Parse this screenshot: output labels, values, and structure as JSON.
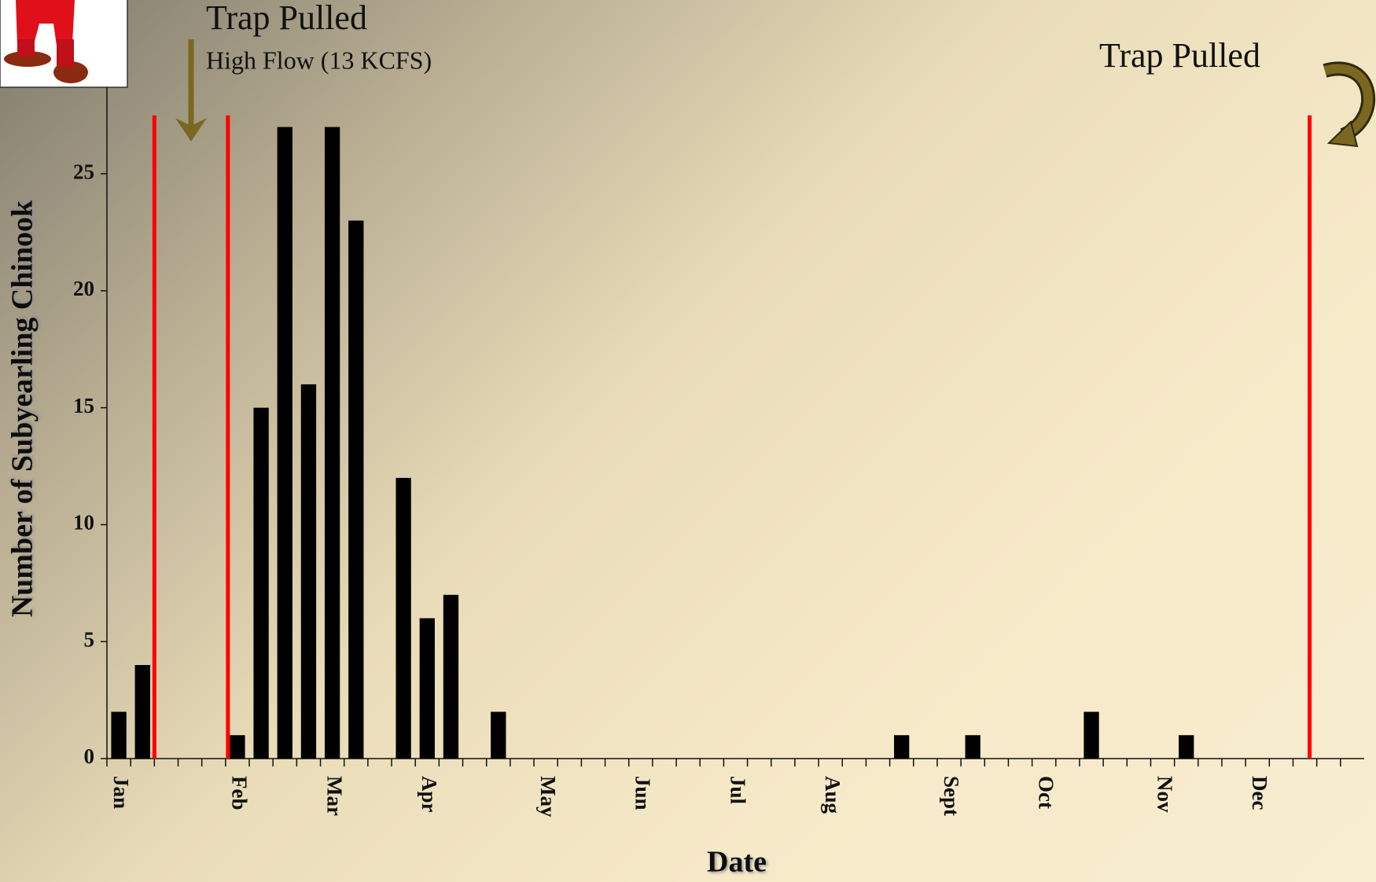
{
  "chart_data": {
    "type": "bar",
    "annotations": [
      "Trap Pulled",
      "High Flow (13 KCFS)",
      "Trap Pulled"
    ],
    "x_label": "Date",
    "y_label": "Number of Subyearling Chinook",
    "categories": [
      "Jan",
      null,
      null,
      null,
      null,
      "Feb",
      null,
      null,
      null,
      "Mar",
      null,
      null,
      null,
      "Apr",
      null,
      null,
      null,
      null,
      "May",
      null,
      null,
      null,
      "Jun",
      null,
      null,
      null,
      "Jul",
      null,
      null,
      null,
      "Aug",
      null,
      null,
      null,
      null,
      "Sept",
      null,
      null,
      null,
      "Oct",
      null,
      null,
      null,
      null,
      "Nov",
      null,
      null,
      null,
      "Dec",
      null,
      null,
      null,
      null
    ],
    "values": [
      2,
      4,
      0,
      0,
      0,
      1,
      15,
      27,
      16,
      27,
      23,
      0,
      12,
      6,
      7,
      0,
      2,
      0,
      0,
      0,
      0,
      0,
      0,
      0,
      0,
      0,
      0,
      0,
      0,
      0,
      0,
      0,
      0,
      1,
      0,
      0,
      1,
      0,
      0,
      0,
      0,
      2,
      0,
      0,
      0,
      1,
      0,
      0,
      0,
      0,
      0,
      0,
      0
    ],
    "color": "#000000",
    "reference_lines": {
      "x": [
        2,
        5.1,
        50.7
      ],
      "top": 27.5,
      "color": "#ff0000"
    },
    "ylim": [
      0,
      28.7
    ],
    "yticks": [
      0,
      5,
      10,
      15,
      20,
      25
    ]
  }
}
